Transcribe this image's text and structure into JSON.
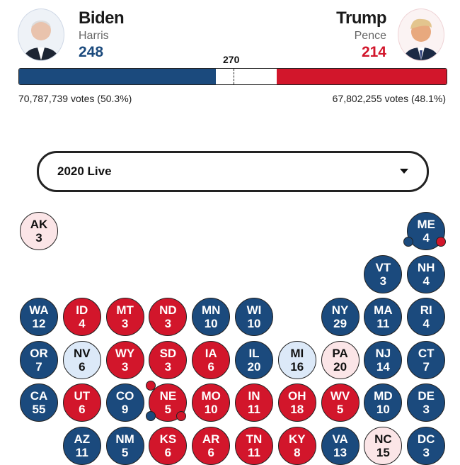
{
  "candidates": {
    "dem": {
      "name": "Biden",
      "running_mate": "Harris",
      "electoral_votes": "248",
      "votes": "70,787,739 votes (50.3%)",
      "ev_num": 248,
      "color": "#1b4a7d"
    },
    "rep": {
      "name": "Trump",
      "running_mate": "Pence",
      "electoral_votes": "214",
      "votes": "67,802,255 votes (48.1%)",
      "ev_num": 214,
      "color": "#d2162b"
    }
  },
  "threshold": "270",
  "total_ev": 538,
  "selector": {
    "value": "2020 Live"
  },
  "states": [
    {
      "abbr": "AK",
      "ev": "3",
      "status": "LR",
      "row": 0,
      "col": 0
    },
    {
      "abbr": "ME",
      "ev": "4",
      "status": "D",
      "row": 0,
      "col": 9,
      "split": true
    },
    {
      "abbr": "VT",
      "ev": "3",
      "status": "D",
      "row": 1,
      "col": 8
    },
    {
      "abbr": "NH",
      "ev": "4",
      "status": "D",
      "row": 1,
      "col": 9
    },
    {
      "abbr": "WA",
      "ev": "12",
      "status": "D",
      "row": 2,
      "col": 0
    },
    {
      "abbr": "ID",
      "ev": "4",
      "status": "R",
      "row": 2,
      "col": 1
    },
    {
      "abbr": "MT",
      "ev": "3",
      "status": "R",
      "row": 2,
      "col": 2
    },
    {
      "abbr": "ND",
      "ev": "3",
      "status": "R",
      "row": 2,
      "col": 3
    },
    {
      "abbr": "MN",
      "ev": "10",
      "status": "D",
      "row": 2,
      "col": 4
    },
    {
      "abbr": "WI",
      "ev": "10",
      "status": "D",
      "row": 2,
      "col": 5
    },
    {
      "abbr": "NY",
      "ev": "29",
      "status": "D",
      "row": 2,
      "col": 7
    },
    {
      "abbr": "MA",
      "ev": "11",
      "status": "D",
      "row": 2,
      "col": 8
    },
    {
      "abbr": "RI",
      "ev": "4",
      "status": "D",
      "row": 2,
      "col": 9
    },
    {
      "abbr": "OR",
      "ev": "7",
      "status": "D",
      "row": 3,
      "col": 0
    },
    {
      "abbr": "NV",
      "ev": "6",
      "status": "LD",
      "row": 3,
      "col": 1
    },
    {
      "abbr": "WY",
      "ev": "3",
      "status": "R",
      "row": 3,
      "col": 2
    },
    {
      "abbr": "SD",
      "ev": "3",
      "status": "R",
      "row": 3,
      "col": 3
    },
    {
      "abbr": "IA",
      "ev": "6",
      "status": "R",
      "row": 3,
      "col": 4
    },
    {
      "abbr": "IL",
      "ev": "20",
      "status": "D",
      "row": 3,
      "col": 5
    },
    {
      "abbr": "MI",
      "ev": "16",
      "status": "LD",
      "row": 3,
      "col": 6
    },
    {
      "abbr": "PA",
      "ev": "20",
      "status": "LR",
      "row": 3,
      "col": 7
    },
    {
      "abbr": "NJ",
      "ev": "14",
      "status": "D",
      "row": 3,
      "col": 8
    },
    {
      "abbr": "CT",
      "ev": "7",
      "status": "D",
      "row": 3,
      "col": 9
    },
    {
      "abbr": "CA",
      "ev": "55",
      "status": "D",
      "row": 4,
      "col": 0
    },
    {
      "abbr": "UT",
      "ev": "6",
      "status": "R",
      "row": 4,
      "col": 1
    },
    {
      "abbr": "CO",
      "ev": "9",
      "status": "D",
      "row": 4,
      "col": 2
    },
    {
      "abbr": "NE",
      "ev": "5",
      "status": "R",
      "row": 4,
      "col": 3,
      "split": true
    },
    {
      "abbr": "MO",
      "ev": "10",
      "status": "R",
      "row": 4,
      "col": 4
    },
    {
      "abbr": "IN",
      "ev": "11",
      "status": "R",
      "row": 4,
      "col": 5
    },
    {
      "abbr": "OH",
      "ev": "18",
      "status": "R",
      "row": 4,
      "col": 6
    },
    {
      "abbr": "WV",
      "ev": "5",
      "status": "R",
      "row": 4,
      "col": 7
    },
    {
      "abbr": "MD",
      "ev": "10",
      "status": "D",
      "row": 4,
      "col": 8
    },
    {
      "abbr": "DE",
      "ev": "3",
      "status": "D",
      "row": 4,
      "col": 9
    },
    {
      "abbr": "AZ",
      "ev": "11",
      "status": "D",
      "row": 5,
      "col": 1
    },
    {
      "abbr": "NM",
      "ev": "5",
      "status": "D",
      "row": 5,
      "col": 2
    },
    {
      "abbr": "KS",
      "ev": "6",
      "status": "R",
      "row": 5,
      "col": 3
    },
    {
      "abbr": "AR",
      "ev": "6",
      "status": "R",
      "row": 5,
      "col": 4
    },
    {
      "abbr": "TN",
      "ev": "11",
      "status": "R",
      "row": 5,
      "col": 5
    },
    {
      "abbr": "KY",
      "ev": "8",
      "status": "R",
      "row": 5,
      "col": 6
    },
    {
      "abbr": "VA",
      "ev": "13",
      "status": "D",
      "row": 5,
      "col": 7
    },
    {
      "abbr": "NC",
      "ev": "15",
      "status": "LR",
      "row": 5,
      "col": 8
    },
    {
      "abbr": "DC",
      "ev": "3",
      "status": "D",
      "row": 5,
      "col": 9
    }
  ]
}
